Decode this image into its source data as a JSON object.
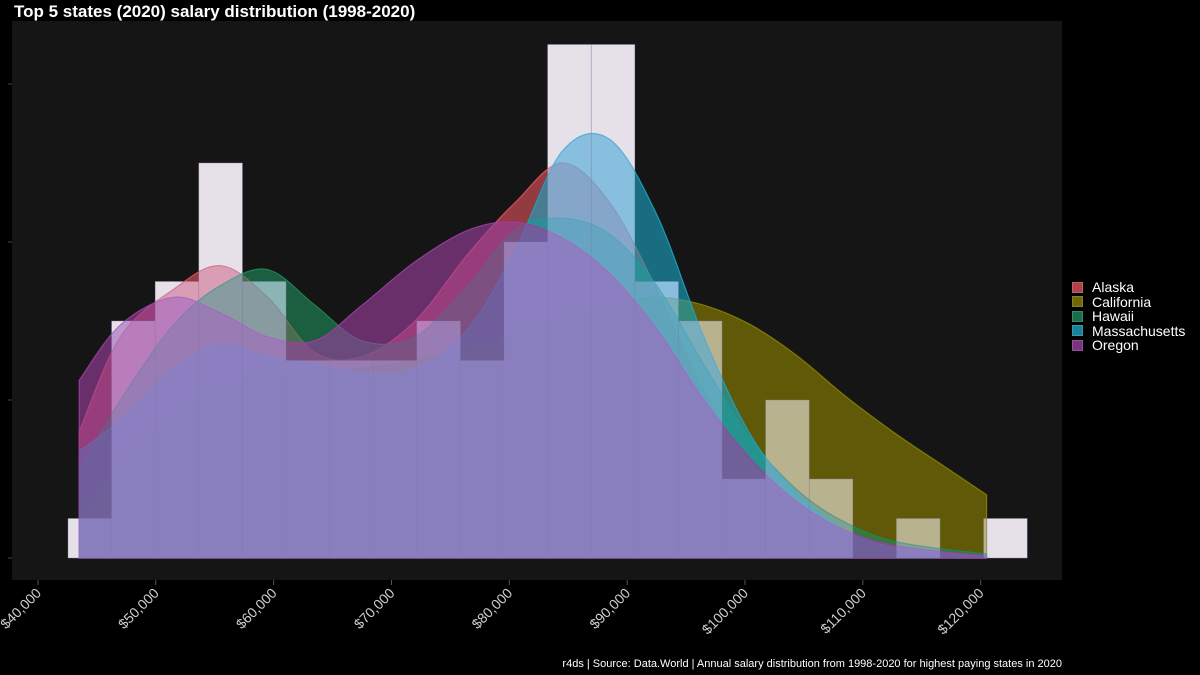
{
  "chart_data": {
    "type": "histogram+density",
    "title": "Top 5 states (2020) salary distribution (1998-2020)",
    "caption": "r4ds | Source: Data.World | Annual salary distribution from 1998-2020 for highest paying states in 2020",
    "xlabel": "",
    "ylabel": "",
    "xlim": [
      38000,
      127000
    ],
    "ylim": [
      0,
      13.3
    ],
    "x_ticks": [
      40000,
      50000,
      60000,
      70000,
      80000,
      90000,
      100000,
      110000,
      120000
    ],
    "x_tick_labels": [
      "$40,000",
      "$50,000",
      "$60,000",
      "$70,000",
      "$80,000",
      "$90,000",
      "$100,000",
      "$110,000",
      "$120,000"
    ],
    "y_ticks": [
      0,
      4,
      8,
      12
    ],
    "grid": false,
    "legend_position": "right",
    "histogram": {
      "bin_width": 3700,
      "bin_centers": [
        44400,
        48100,
        51800,
        55500,
        59200,
        62900,
        66600,
        70300,
        74000,
        77700,
        81400,
        85100,
        88800,
        92500,
        96200,
        99900,
        103600,
        107300,
        111000,
        114700,
        118400,
        122100
      ],
      "counts": [
        1,
        6,
        7,
        10,
        7,
        5,
        5,
        5,
        6,
        5,
        8,
        13,
        13,
        7,
        6,
        2,
        4,
        2,
        0,
        1,
        0,
        1
      ]
    },
    "density_series": [
      {
        "name": "Alaska",
        "color": "#E0525B",
        "points": [
          [
            43500,
            3.2
          ],
          [
            47000,
            5.6
          ],
          [
            51500,
            6.8
          ],
          [
            55500,
            7.4
          ],
          [
            59500,
            6.6
          ],
          [
            63500,
            5.2
          ],
          [
            67500,
            5.1
          ],
          [
            72000,
            6.0
          ],
          [
            76500,
            7.7
          ],
          [
            80500,
            9.0
          ],
          [
            84500,
            10.0
          ],
          [
            88500,
            9.0
          ],
          [
            92500,
            6.8
          ],
          [
            96500,
            4.2
          ],
          [
            100500,
            2.4
          ],
          [
            104500,
            1.3
          ],
          [
            108500,
            0.6
          ],
          [
            113000,
            0.2
          ],
          [
            120500,
            0.05
          ]
        ]
      },
      {
        "name": "California",
        "color": "#8C8200",
        "points": [
          [
            43500,
            0.9
          ],
          [
            47000,
            2.4
          ],
          [
            51500,
            3.6
          ],
          [
            55500,
            4.3
          ],
          [
            59500,
            4.6
          ],
          [
            63500,
            4.7
          ],
          [
            67500,
            4.8
          ],
          [
            72000,
            5.0
          ],
          [
            76500,
            5.3
          ],
          [
            80500,
            5.7
          ],
          [
            84500,
            6.1
          ],
          [
            88500,
            6.4
          ],
          [
            92500,
            6.6
          ],
          [
            96500,
            6.4
          ],
          [
            100500,
            5.9
          ],
          [
            104500,
            5.1
          ],
          [
            108500,
            4.1
          ],
          [
            113000,
            3.1
          ],
          [
            117000,
            2.3
          ],
          [
            120500,
            1.6
          ]
        ]
      },
      {
        "name": "Hawaii",
        "color": "#1E8A5A",
        "points": [
          [
            43500,
            2.2
          ],
          [
            47000,
            4.0
          ],
          [
            51500,
            5.9
          ],
          [
            55500,
            6.9
          ],
          [
            59500,
            7.3
          ],
          [
            63500,
            6.4
          ],
          [
            67500,
            5.5
          ],
          [
            72000,
            5.6
          ],
          [
            76500,
            6.9
          ],
          [
            80500,
            8.3
          ],
          [
            84500,
            8.6
          ],
          [
            88500,
            8.2
          ],
          [
            92500,
            6.9
          ],
          [
            96500,
            4.9
          ],
          [
            100500,
            3.0
          ],
          [
            104500,
            1.7
          ],
          [
            108500,
            0.9
          ],
          [
            113000,
            0.4
          ],
          [
            120500,
            0.1
          ]
        ]
      },
      {
        "name": "Massachusetts",
        "color": "#1AA5C2",
        "points": [
          [
            43500,
            2.7
          ],
          [
            47000,
            3.5
          ],
          [
            51500,
            4.8
          ],
          [
            55500,
            5.4
          ],
          [
            59500,
            5.1
          ],
          [
            63500,
            4.9
          ],
          [
            67500,
            4.7
          ],
          [
            72000,
            4.8
          ],
          [
            76500,
            5.8
          ],
          [
            80500,
            7.8
          ],
          [
            84500,
            10.3
          ],
          [
            88500,
            10.6
          ],
          [
            92500,
            8.7
          ],
          [
            96500,
            5.6
          ],
          [
            100500,
            3.1
          ],
          [
            104500,
            1.6
          ],
          [
            108500,
            0.7
          ],
          [
            113000,
            0.25
          ],
          [
            120500,
            0.05
          ]
        ]
      },
      {
        "name": "Oregon",
        "color": "#9B3FA0",
        "points": [
          [
            43500,
            4.5
          ],
          [
            47000,
            5.9
          ],
          [
            51500,
            6.6
          ],
          [
            55500,
            6.2
          ],
          [
            59500,
            5.6
          ],
          [
            63500,
            5.5
          ],
          [
            67500,
            6.4
          ],
          [
            72000,
            7.5
          ],
          [
            76500,
            8.3
          ],
          [
            80500,
            8.5
          ],
          [
            84500,
            8.1
          ],
          [
            88500,
            7.2
          ],
          [
            92500,
            5.8
          ],
          [
            96500,
            4.0
          ],
          [
            100500,
            2.5
          ],
          [
            104500,
            1.4
          ],
          [
            108500,
            0.7
          ],
          [
            113000,
            0.3
          ],
          [
            120500,
            0.05
          ]
        ]
      }
    ]
  }
}
